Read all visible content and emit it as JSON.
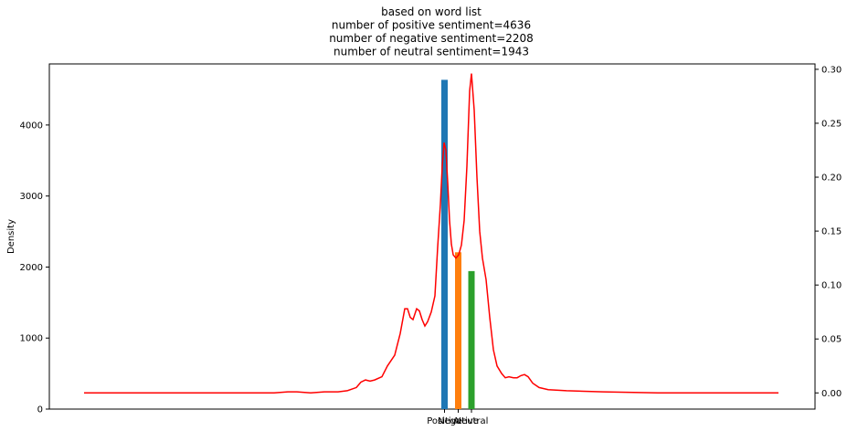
{
  "chart_data": {
    "type": "bar",
    "title": [
      "based on word list",
      "number of positive sentiment=4636",
      "number of negative sentiment=2208",
      "number of neutral sentiment=1943"
    ],
    "ylabel": "Density",
    "categories": [
      "Positive",
      "Negative",
      "Neutral"
    ],
    "values": [
      4636,
      2208,
      1943
    ],
    "colors": [
      "#1f77b4",
      "#ff7f0e",
      "#2ca02c"
    ],
    "ylim": [
      0,
      4860
    ],
    "yticks": [
      0,
      1000,
      2000,
      3000,
      4000
    ],
    "y2lim": [
      -0.015,
      0.305
    ],
    "y2ticks": [
      "0.00",
      "0.05",
      "0.10",
      "0.15",
      "0.20",
      "0.25",
      "0.30"
    ],
    "density_color": "#ff0000",
    "density_curve": [
      [
        92,
        0.0
      ],
      [
        150,
        0.0
      ],
      [
        200,
        0.0
      ],
      [
        250,
        0.0
      ],
      [
        300,
        0.0
      ],
      [
        315,
        0.001
      ],
      [
        325,
        0.001
      ],
      [
        340,
        0.0
      ],
      [
        355,
        0.001
      ],
      [
        370,
        0.001
      ],
      [
        380,
        0.002
      ],
      [
        390,
        0.005
      ],
      [
        395,
        0.01
      ],
      [
        400,
        0.012
      ],
      [
        405,
        0.011
      ],
      [
        410,
        0.012
      ],
      [
        418,
        0.015
      ],
      [
        424,
        0.025
      ],
      [
        432,
        0.035
      ],
      [
        438,
        0.055
      ],
      [
        443,
        0.078
      ],
      [
        446,
        0.078
      ],
      [
        449,
        0.07
      ],
      [
        452,
        0.068
      ],
      [
        456,
        0.078
      ],
      [
        459,
        0.076
      ],
      [
        462,
        0.068
      ],
      [
        465,
        0.062
      ],
      [
        468,
        0.066
      ],
      [
        472,
        0.075
      ],
      [
        476,
        0.09
      ],
      [
        479,
        0.135
      ],
      [
        482,
        0.175
      ],
      [
        484,
        0.21
      ],
      [
        486,
        0.232
      ],
      [
        488,
        0.225
      ],
      [
        490,
        0.195
      ],
      [
        492,
        0.16
      ],
      [
        494,
        0.138
      ],
      [
        496,
        0.128
      ],
      [
        499,
        0.125
      ],
      [
        502,
        0.128
      ],
      [
        505,
        0.137
      ],
      [
        508,
        0.16
      ],
      [
        511,
        0.21
      ],
      [
        514,
        0.28
      ],
      [
        516,
        0.296
      ],
      [
        519,
        0.262
      ],
      [
        522,
        0.2
      ],
      [
        525,
        0.15
      ],
      [
        528,
        0.125
      ],
      [
        532,
        0.105
      ],
      [
        536,
        0.07
      ],
      [
        540,
        0.04
      ],
      [
        544,
        0.025
      ],
      [
        549,
        0.018
      ],
      [
        553,
        0.014
      ],
      [
        557,
        0.015
      ],
      [
        562,
        0.014
      ],
      [
        566,
        0.014
      ],
      [
        570,
        0.016
      ],
      [
        574,
        0.017
      ],
      [
        578,
        0.015
      ],
      [
        583,
        0.009
      ],
      [
        590,
        0.005
      ],
      [
        600,
        0.003
      ],
      [
        620,
        0.002
      ],
      [
        660,
        0.001
      ],
      [
        720,
        0.0
      ],
      [
        800,
        0.0
      ],
      [
        852,
        0.0
      ]
    ]
  }
}
